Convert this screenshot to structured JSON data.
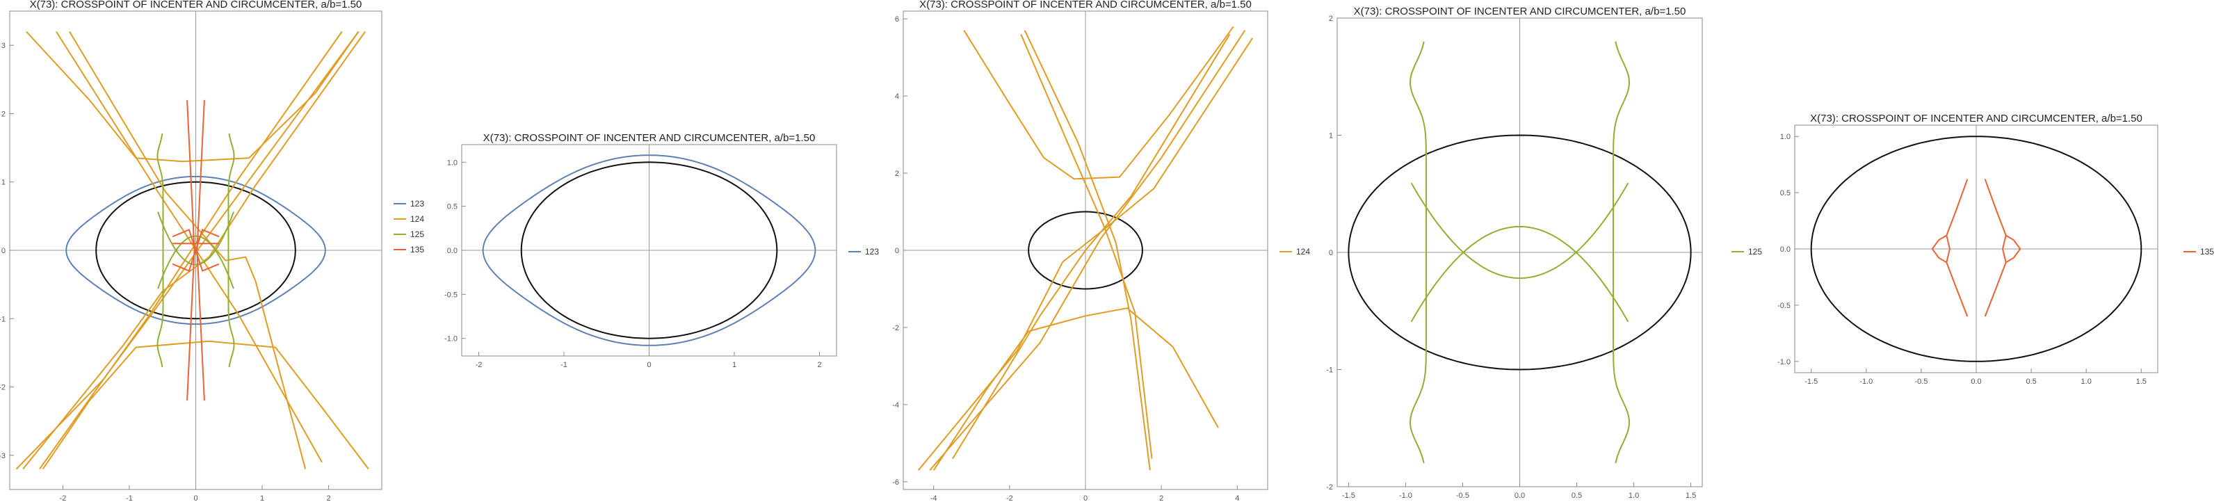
{
  "colors": {
    "ellipse": "#111111",
    "123": "#5e81b5",
    "124": "#e19c24",
    "125": "#8fb032",
    "135": "#eb6235"
  },
  "chart_data": [
    {
      "type": "line",
      "title": "X(73): CROSSPOINT OF INCENTER AND CIRCUMCENTER, a/b=1.50",
      "xlim": [
        -2.8,
        2.8
      ],
      "ylim": [
        -3.5,
        3.5
      ],
      "x_ticks": [
        -2,
        -1,
        0,
        1,
        2
      ],
      "y_ticks": [
        -3,
        -2,
        -1,
        0,
        1,
        2,
        3
      ],
      "x_tick_labels": [
        "-2",
        "-1",
        "0",
        "1",
        "2"
      ],
      "y_tick_labels": [
        "-3",
        "-2",
        "-1",
        "0",
        "1",
        "2",
        "3"
      ],
      "series": [
        {
          "name": "123",
          "curve": "c123"
        },
        {
          "name": "124",
          "curve": "c124"
        },
        {
          "name": "125",
          "curve": "c125"
        },
        {
          "name": "135",
          "curve": "c135"
        }
      ],
      "legend_position": "right",
      "ellipse": {
        "a": 1.5,
        "b": 1.0
      }
    },
    {
      "type": "line",
      "title": "X(73): CROSSPOINT OF INCENTER AND CIRCUMCENTER, a/b=1.50",
      "xlim": [
        -2.2,
        2.2
      ],
      "ylim": [
        -1.2,
        1.2
      ],
      "x_ticks": [
        -2,
        -1,
        0,
        1,
        2
      ],
      "y_ticks": [
        -1.0,
        -0.5,
        0.0,
        0.5,
        1.0
      ],
      "x_tick_labels": [
        "-2",
        "-1",
        "0",
        "1",
        "2"
      ],
      "y_tick_labels": [
        "-1.0",
        "-0.5",
        "0.0",
        "0.5",
        "1.0"
      ],
      "series": [
        {
          "name": "123",
          "curve": "c123"
        }
      ],
      "legend_position": "right",
      "ellipse": {
        "a": 1.5,
        "b": 1.0
      }
    },
    {
      "type": "line",
      "title": "X(73): CROSSPOINT OF INCENTER AND CIRCUMCENTER, a/b=1.50",
      "xlim": [
        -4.8,
        4.8
      ],
      "ylim": [
        -6.2,
        6.2
      ],
      "x_ticks": [
        -4,
        -2,
        0,
        2,
        4
      ],
      "y_ticks": [
        -6,
        -4,
        -2,
        0,
        2,
        4,
        6
      ],
      "x_tick_labels": [
        "-4",
        "-2",
        "0",
        "2",
        "4"
      ],
      "y_tick_labels": [
        "-6",
        "-4",
        "-2",
        "0",
        "2",
        "4",
        "6"
      ],
      "series": [
        {
          "name": "124",
          "curve": "c124"
        }
      ],
      "legend_position": "right",
      "ellipse": {
        "a": 1.5,
        "b": 1.0
      }
    },
    {
      "type": "line",
      "title": "X(73): CROSSPOINT OF INCENTER AND CIRCUMCENTER, a/b=1.50",
      "xlim": [
        -1.6,
        1.6
      ],
      "ylim": [
        -2.0,
        2.0
      ],
      "x_ticks": [
        -1.5,
        -1.0,
        -0.5,
        0.0,
        0.5,
        1.0,
        1.5
      ],
      "y_ticks": [
        -2,
        -1,
        0,
        1,
        2
      ],
      "x_tick_labels": [
        "-1.5",
        "-1.0",
        "-0.5",
        "0.0",
        "0.5",
        "1.0",
        "1.5"
      ],
      "y_tick_labels": [
        "-2",
        "-1",
        "0",
        "1",
        "2"
      ],
      "series": [
        {
          "name": "125",
          "curve": "c125"
        }
      ],
      "legend_position": "right",
      "ellipse": {
        "a": 1.5,
        "b": 1.0
      }
    },
    {
      "type": "line",
      "title": "X(73): CROSSPOINT OF INCENTER AND CIRCUMCENTER, a/b=1.50",
      "xlim": [
        -1.65,
        1.65
      ],
      "ylim": [
        -1.1,
        1.1
      ],
      "x_ticks": [
        -1.5,
        -1.0,
        -0.5,
        0.0,
        0.5,
        1.0,
        1.5
      ],
      "y_ticks": [
        -1.0,
        -0.5,
        0.0,
        0.5,
        1.0
      ],
      "x_tick_labels": [
        "-1.5",
        "-1.0",
        "-0.5",
        "0.0",
        "0.5",
        "1.0",
        "1.5"
      ],
      "y_tick_labels": [
        "-1.0",
        "-0.5",
        "0.0",
        "0.5",
        "1.0"
      ],
      "series": [
        {
          "name": "135",
          "curve": "c135"
        }
      ],
      "legend_position": "right",
      "ellipse": {
        "a": 1.5,
        "b": 1.0
      }
    }
  ]
}
